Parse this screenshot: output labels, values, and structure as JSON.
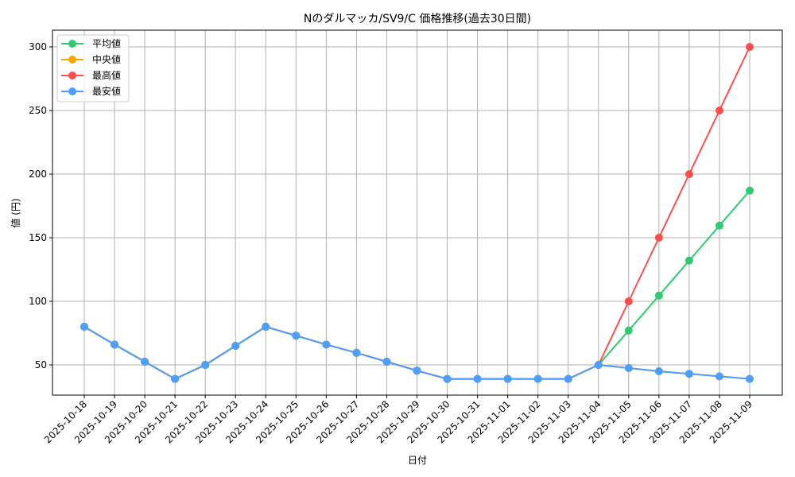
{
  "chart_data": {
    "type": "line",
    "title": "Nのダルマッカ/SV9/C 価格推移(過去30日間)",
    "xlabel": "日付",
    "ylabel": "値 (円)",
    "ylim": [
      26.25,
      313.1
    ],
    "yticks": [
      50,
      100,
      150,
      200,
      250,
      300
    ],
    "grid": true,
    "legend_position": "upper left",
    "x": [
      "2025-10-18",
      "2025-10-19",
      "2025-10-20",
      "2025-10-21",
      "2025-10-22",
      "2025-10-23",
      "2025-10-24",
      "2025-10-25",
      "2025-10-26",
      "2025-10-27",
      "2025-10-28",
      "2025-10-29",
      "2025-10-30",
      "2025-10-31",
      "2025-11-01",
      "2025-11-02",
      "2025-11-03",
      "2025-11-04",
      "2025-11-05",
      "2025-11-06",
      "2025-11-07",
      "2025-11-08",
      "2025-11-09"
    ],
    "series": [
      {
        "name": "平均値",
        "color": "#2ecc71",
        "values": [
          80,
          66,
          52.5,
          39,
          50,
          65,
          80,
          73,
          66,
          59.5,
          52.5,
          45.5,
          39,
          39,
          39,
          39,
          39,
          50,
          77,
          104.5,
          132,
          159.5,
          187
        ]
      },
      {
        "name": "中央値",
        "color": "#ffa500",
        "values": [
          80,
          66,
          52.5,
          39,
          50,
          65,
          80,
          73,
          66,
          59.5,
          52.5,
          45.5,
          39,
          39,
          39,
          39,
          39,
          50,
          47.5,
          45,
          43,
          41,
          39
        ]
      },
      {
        "name": "最高値",
        "color": "#ff4d4d",
        "values": [
          80,
          66,
          52.5,
          39,
          50,
          65,
          80,
          73,
          66,
          59.5,
          52.5,
          45.5,
          39,
          39,
          39,
          39,
          39,
          50,
          100,
          150,
          200,
          250,
          300
        ]
      },
      {
        "name": "最安値",
        "color": "#4d9fff",
        "values": [
          80,
          66,
          52.5,
          39,
          50,
          65,
          80,
          73,
          66,
          59.5,
          52.5,
          45.5,
          39,
          39,
          39,
          39,
          39,
          50,
          47.5,
          45,
          43,
          41,
          39
        ]
      }
    ]
  }
}
